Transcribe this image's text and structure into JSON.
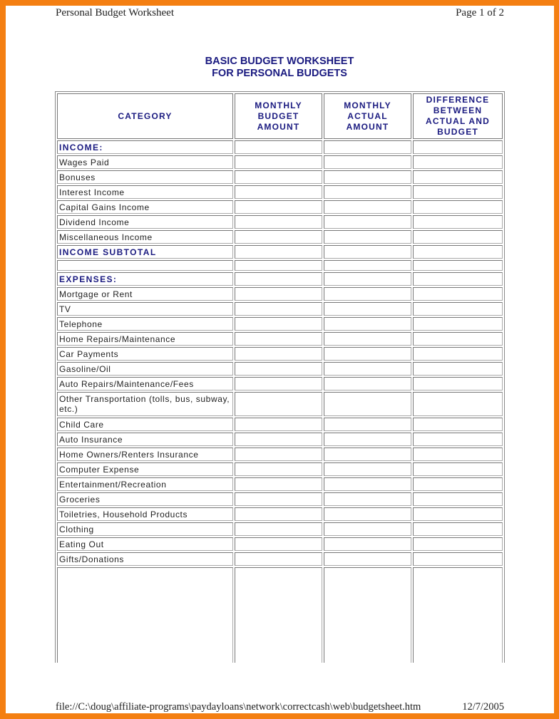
{
  "page_header": {
    "left": "Personal Budget Worksheet",
    "right": "Page 1 of 2"
  },
  "title": {
    "line1": "BASIC BUDGET WORKSHEET",
    "line2": "FOR PERSONAL BUDGETS"
  },
  "columns": [
    "CATEGORY",
    "MONTHLY BUDGET AMOUNT",
    "MONTHLY ACTUAL AMOUNT",
    "DIFFERENCE BETWEEN ACTUAL AND BUDGET"
  ],
  "rows": [
    {
      "label": "INCOME:",
      "type": "section"
    },
    {
      "label": "Wages Paid"
    },
    {
      "label": "Bonuses"
    },
    {
      "label": "Interest Income"
    },
    {
      "label": "Capital Gains Income"
    },
    {
      "label": "Dividend Income"
    },
    {
      "label": "Miscellaneous Income"
    },
    {
      "label": "INCOME SUBTOTAL",
      "type": "section"
    },
    {
      "label": "",
      "type": "blank"
    },
    {
      "label": "EXPENSES:",
      "type": "section"
    },
    {
      "label": "Mortgage or Rent"
    },
    {
      "label": "TV"
    },
    {
      "label": "Telephone"
    },
    {
      "label": "Home Repairs/Maintenance"
    },
    {
      "label": "Car Payments"
    },
    {
      "label": "Gasoline/Oil"
    },
    {
      "label": "Auto Repairs/Maintenance/Fees"
    },
    {
      "label": "Other Transportation (tolls, bus, subway, etc.)",
      "type": "dbl"
    },
    {
      "label": "Child Care"
    },
    {
      "label": "Auto Insurance"
    },
    {
      "label": "Home Owners/Renters Insurance"
    },
    {
      "label": "Computer Expense"
    },
    {
      "label": "Entertainment/Recreation"
    },
    {
      "label": "Groceries"
    },
    {
      "label": "Toiletries, Household Products"
    },
    {
      "label": "Clothing"
    },
    {
      "label": "Eating Out"
    },
    {
      "label": "Gifts/Donations"
    },
    {
      "label": "",
      "type": "big"
    }
  ],
  "footer": {
    "path": "file://C:\\doug\\affiliate-programs\\paydayloans\\network\\correctcash\\web\\budgetsheet.htm",
    "date": "12/7/2005"
  },
  "colors": {
    "border": "#f47f12",
    "heading": "#1a1a80"
  }
}
